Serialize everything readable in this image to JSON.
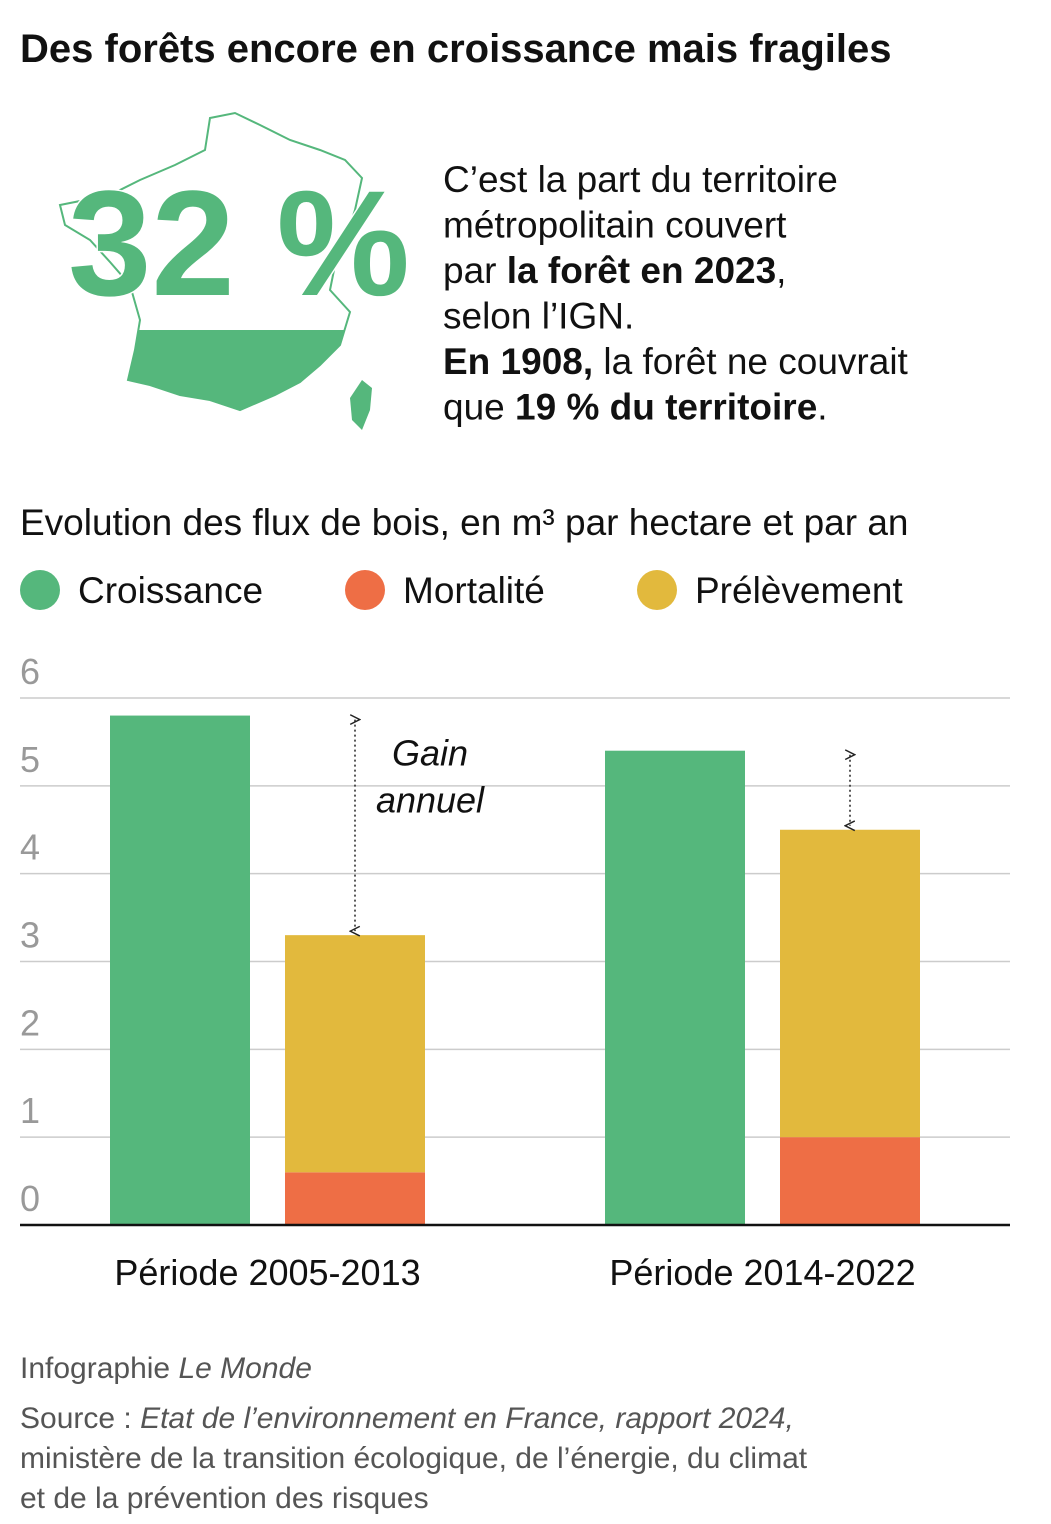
{
  "header": {
    "title": "Des forêts encore  en croissance mais fragiles",
    "big_number": "32 %",
    "description": [
      [
        {
          "text": "C’est la part du territoire"
        }
      ],
      [
        {
          "text": "métropolitain couvert"
        }
      ],
      [
        {
          "text": "par "
        },
        {
          "text": "la forêt en 2023",
          "bold": true
        },
        {
          "text": ","
        }
      ],
      [
        {
          "text": "selon l’IGN."
        }
      ],
      [
        {
          "text": "En 1908,",
          "bold": true
        },
        {
          "text": " la forêt ne couvrait"
        }
      ],
      [
        {
          "text": "que "
        },
        {
          "text": "19 % du territoire",
          "bold": true
        },
        {
          "text": "."
        }
      ]
    ]
  },
  "chart_data": {
    "type": "bar",
    "title": "Evolution des flux de bois, en m³ par hectare et par an",
    "categories": [
      "Période 2005-2013",
      "Période 2014-2022"
    ],
    "series": [
      {
        "name": "Croissance",
        "color": "#55b77c",
        "values": [
          5.8,
          5.4
        ],
        "stack": "a"
      },
      {
        "name": "Mortalité",
        "color": "#ee6e45",
        "values": [
          0.6,
          1.0
        ],
        "stack": "b"
      },
      {
        "name": "Prélèvement",
        "color": "#e2b93d",
        "values": [
          2.7,
          3.5
        ],
        "stack": "b"
      }
    ],
    "annotation": [
      "Gain",
      "annuel"
    ],
    "ylim": [
      0,
      6
    ],
    "yticks": [
      0,
      1,
      2,
      3,
      4,
      5,
      6
    ],
    "grid": true,
    "legend": "top"
  },
  "footer": {
    "credit": [
      {
        "text": "Infographie "
      },
      {
        "text": "Le Monde",
        "italic": true
      }
    ],
    "source": [
      [
        {
          "text": "Source : "
        },
        {
          "text": "Etat de l’environnement en France, rapport 2024,",
          "italic": true
        }
      ],
      [
        {
          "text": "ministère de la transition écologique, de l’énergie, du climat"
        }
      ],
      [
        {
          "text": "et de la prévention des risques"
        }
      ]
    ]
  }
}
